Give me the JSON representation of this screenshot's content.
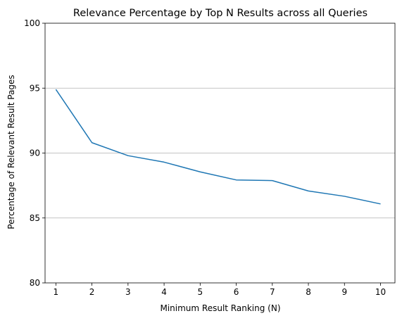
{
  "chart_data": {
    "type": "line",
    "title": "Relevance Percentage by Top N Results across all Queries",
    "xlabel": "Minimum Result Ranking (N)",
    "ylabel": "Percentage of Relevant Result Pages",
    "x": [
      1,
      2,
      3,
      4,
      5,
      6,
      7,
      8,
      9,
      10
    ],
    "series": [
      {
        "values": [
          94.9,
          90.8,
          89.8,
          89.3,
          88.55,
          87.93,
          87.88,
          87.08,
          86.67,
          86.08
        ]
      }
    ],
    "xticks": [
      "1",
      "2",
      "3",
      "4",
      "5",
      "6",
      "7",
      "8",
      "9",
      "10"
    ],
    "yticks": [
      "80",
      "85",
      "90",
      "95",
      "100"
    ],
    "xlim": [
      0.7,
      10.4
    ],
    "ylim": [
      80,
      100
    ],
    "grid": "horizontal",
    "colors": {
      "line": "#1f77b4",
      "grid": "#b0b0b0",
      "axes": "#000000"
    }
  }
}
